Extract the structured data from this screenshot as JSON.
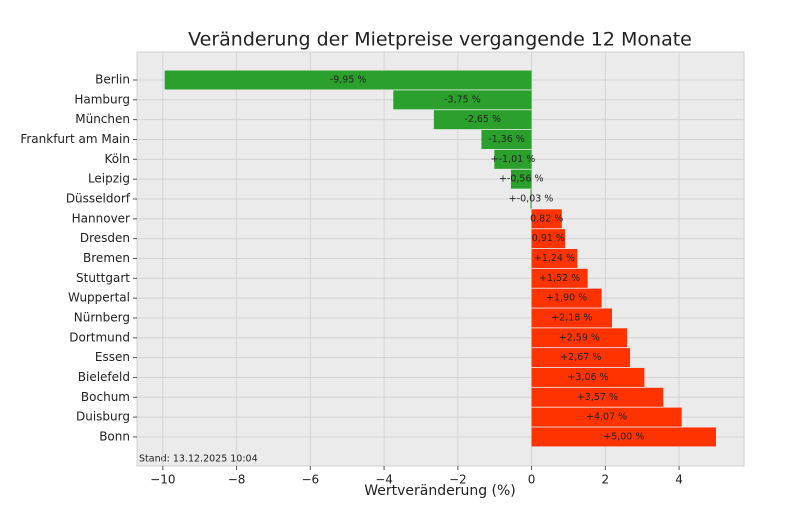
{
  "chart_data": {
    "type": "barh",
    "title": "Veränderung der Mietpreise vergangende 12 Monate",
    "x_label": "Wertveränderung (%)",
    "annotation": "Stand: 13.12.2025 10:04",
    "categories": [
      "Berlin",
      "Hamburg",
      "München",
      "Frankfurt am Main",
      "Köln",
      "Leipzig",
      "Düsseldorf",
      "Hannover",
      "Dresden",
      "Bremen",
      "Stuttgart",
      "Wuppertal",
      "Nürnberg",
      "Dortmund",
      "Essen",
      "Bielefeld",
      "Bochum",
      "Duisburg",
      "Bonn"
    ],
    "values": [
      -9.95,
      -3.75,
      -2.65,
      -1.36,
      -1.01,
      -0.56,
      -0.03,
      0.82,
      0.91,
      1.24,
      1.52,
      1.9,
      2.18,
      2.59,
      2.67,
      3.06,
      3.57,
      4.07,
      5.0
    ],
    "value_labels": [
      "-9,95 %",
      "-3,75 %",
      "-2,65 %",
      "-1,36 %",
      "+-1,01 %",
      "+-0,56 %",
      "+-0,03 %",
      "0,82 %",
      "0,91 %",
      "+1,24 %",
      "+1,52 %",
      "+1,90 %",
      "+2,18 %",
      "+2,59 %",
      "+2,67 %",
      "+3,06 %",
      "+3,57 %",
      "+4,07 %",
      "+5,00 %"
    ],
    "colors": [
      "#2ca02c",
      "#2ca02c",
      "#2ca02c",
      "#2ca02c",
      "#2ca02c",
      "#2ca02c",
      "#2ca02c",
      "#ff3300",
      "#ff3300",
      "#ff3300",
      "#ff3300",
      "#ff3300",
      "#ff3300",
      "#ff3300",
      "#ff3300",
      "#ff3300",
      "#ff3300",
      "#ff3300",
      "#ff3300"
    ],
    "xlim": [
      -10.7,
      5.76
    ],
    "xticks": [
      {
        "value": -10,
        "label": "−10"
      },
      {
        "value": -8,
        "label": "−8"
      },
      {
        "value": -6,
        "label": "−6"
      },
      {
        "value": -4,
        "label": "−4"
      },
      {
        "value": -2,
        "label": "−2"
      },
      0,
      2,
      4
    ],
    "grid": true
  }
}
